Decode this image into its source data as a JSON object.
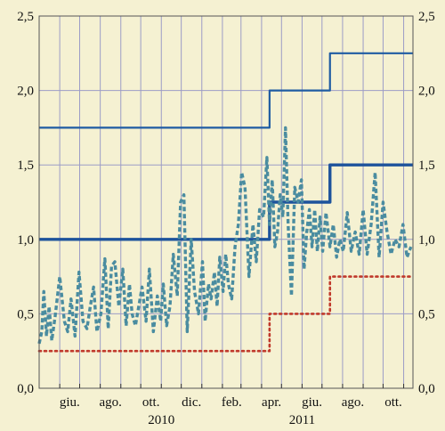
{
  "chart_data": {
    "type": "line",
    "title": "",
    "xlabel": "",
    "ylabel": "",
    "ylim": [
      0,
      2.5
    ],
    "yticks": [
      "0,0",
      "0,5",
      "1,0",
      "1,5",
      "2,0",
      "2,5"
    ],
    "y_axes": "left-and-right",
    "grid": true,
    "x_range": [
      "2010-05-01",
      "2011-11-15"
    ],
    "month_ticks": [
      "2010-06",
      "2010-07",
      "2010-08",
      "2010-09",
      "2010-10",
      "2010-11",
      "2010-12",
      "2011-01",
      "2011-02",
      "2011-03",
      "2011-04",
      "2011-05",
      "2011-06",
      "2011-07",
      "2011-08",
      "2011-09",
      "2011-10",
      "2011-11"
    ],
    "month_labels": [
      {
        "month": "2010-06",
        "text": "giu."
      },
      {
        "month": "2010-08",
        "text": "ago."
      },
      {
        "month": "2010-10",
        "text": "ott."
      },
      {
        "month": "2010-12",
        "text": "dic."
      },
      {
        "month": "2011-02",
        "text": "feb."
      },
      {
        "month": "2011-04",
        "text": "apr."
      },
      {
        "month": "2011-06",
        "text": "giu."
      },
      {
        "month": "2011-08",
        "text": "ago."
      },
      {
        "month": "2011-10",
        "text": "ott."
      }
    ],
    "years": [
      {
        "text": "2010",
        "month": "2010-11"
      },
      {
        "text": "2011",
        "month": "2011-06"
      }
    ],
    "colors": {
      "background": "#f5f1d2",
      "grid": "#9c9cc6",
      "upper_step": "#1f5ca3",
      "middle_step": "#1d539c",
      "dotted_step": "#c0392b",
      "dashed_series": "#4a8ca0"
    },
    "series": [
      {
        "style": "step-solid-thin",
        "x": [
          "2010-05-01",
          "2011-04-13",
          "2011-07-13",
          "2011-11-15"
        ],
        "y": [
          1.75,
          2.0,
          2.25,
          2.25
        ]
      },
      {
        "style": "step-solid-thick",
        "x": [
          "2010-05-01",
          "2011-04-13",
          "2011-07-13",
          "2011-11-15"
        ],
        "y": [
          1.0,
          1.25,
          1.5,
          1.5
        ]
      },
      {
        "style": "step-dotted",
        "x": [
          "2010-05-01",
          "2011-04-13",
          "2011-07-13",
          "2011-11-15"
        ],
        "y": [
          0.25,
          0.5,
          0.75,
          0.75
        ]
      },
      {
        "style": "dashed",
        "x": [
          "2010-05-01",
          "2010-05-05",
          "2010-05-08",
          "2010-05-12",
          "2010-05-16",
          "2010-05-20",
          "2010-05-25",
          "2010-06-01",
          "2010-06-08",
          "2010-06-13",
          "2010-06-18",
          "2010-06-24",
          "2010-06-30",
          "2010-07-06",
          "2010-07-12",
          "2010-07-17",
          "2010-07-22",
          "2010-07-27",
          "2010-08-02",
          "2010-08-08",
          "2010-08-13",
          "2010-08-18",
          "2010-08-23",
          "2010-08-29",
          "2010-09-04",
          "2010-09-09",
          "2010-09-14",
          "2010-09-18",
          "2010-09-23",
          "2010-09-28",
          "2010-10-03",
          "2010-10-09",
          "2010-10-14",
          "2010-10-20",
          "2010-10-26",
          "2010-10-31",
          "2010-11-04",
          "2010-11-09",
          "2010-11-14",
          "2010-11-19",
          "2010-11-25",
          "2010-11-30",
          "2010-12-05",
          "2010-12-10",
          "2010-12-16",
          "2010-12-21",
          "2010-12-27",
          "2011-01-02",
          "2011-01-06",
          "2011-01-11",
          "2011-01-15",
          "2011-01-20",
          "2011-01-24",
          "2011-01-28",
          "2011-02-02",
          "2011-02-06",
          "2011-02-10",
          "2011-02-15",
          "2011-02-20",
          "2011-02-25",
          "2011-03-02",
          "2011-03-07",
          "2011-03-13",
          "2011-03-19",
          "2011-03-24",
          "2011-03-29",
          "2011-04-04",
          "2011-04-09",
          "2011-04-13",
          "2011-04-17",
          "2011-04-21",
          "2011-04-25",
          "2011-04-29",
          "2011-05-03",
          "2011-05-07",
          "2011-05-11",
          "2011-05-16",
          "2011-05-21",
          "2011-05-26",
          "2011-05-31",
          "2011-06-04",
          "2011-06-08",
          "2011-06-12",
          "2011-06-16",
          "2011-06-20",
          "2011-06-24",
          "2011-06-28",
          "2011-07-02",
          "2011-07-07",
          "2011-07-13",
          "2011-07-18",
          "2011-07-23",
          "2011-07-28",
          "2011-08-02",
          "2011-08-08",
          "2011-08-14",
          "2011-08-20",
          "2011-08-26",
          "2011-09-01",
          "2011-09-07",
          "2011-09-13",
          "2011-09-19",
          "2011-09-25",
          "2011-10-01",
          "2011-10-07",
          "2011-10-13",
          "2011-10-19",
          "2011-10-25",
          "2011-10-31",
          "2011-11-06",
          "2011-11-12"
        ],
        "y": [
          0.3,
          0.38,
          0.65,
          0.35,
          0.55,
          0.32,
          0.48,
          0.75,
          0.45,
          0.38,
          0.6,
          0.35,
          0.78,
          0.45,
          0.4,
          0.55,
          0.68,
          0.38,
          0.5,
          0.87,
          0.4,
          0.82,
          0.85,
          0.55,
          0.8,
          0.42,
          0.7,
          0.5,
          0.42,
          0.55,
          0.68,
          0.45,
          0.8,
          0.38,
          0.62,
          0.45,
          0.7,
          0.42,
          0.55,
          0.9,
          0.62,
          1.25,
          1.3,
          0.38,
          1.0,
          0.65,
          0.5,
          0.85,
          0.45,
          0.7,
          0.6,
          0.78,
          0.55,
          0.88,
          0.65,
          0.9,
          0.7,
          0.6,
          0.95,
          1.1,
          1.45,
          1.35,
          0.75,
          1.1,
          0.85,
          1.2,
          1.15,
          1.55,
          1.1,
          1.4,
          0.95,
          1.05,
          1.3,
          1.15,
          1.75,
          1.1,
          0.62,
          1.35,
          1.25,
          1.4,
          0.8,
          1.05,
          1.2,
          0.95,
          1.2,
          0.92,
          1.15,
          0.92,
          1.18,
          0.95,
          1.1,
          0.88,
          1.0,
          0.92,
          1.18,
          0.92,
          1.05,
          0.9,
          1.2,
          0.9,
          1.1,
          1.45,
          0.88,
          1.25,
          1.05,
          0.9,
          1.0,
          0.95,
          1.1,
          0.88,
          0.95
        ]
      }
    ]
  }
}
